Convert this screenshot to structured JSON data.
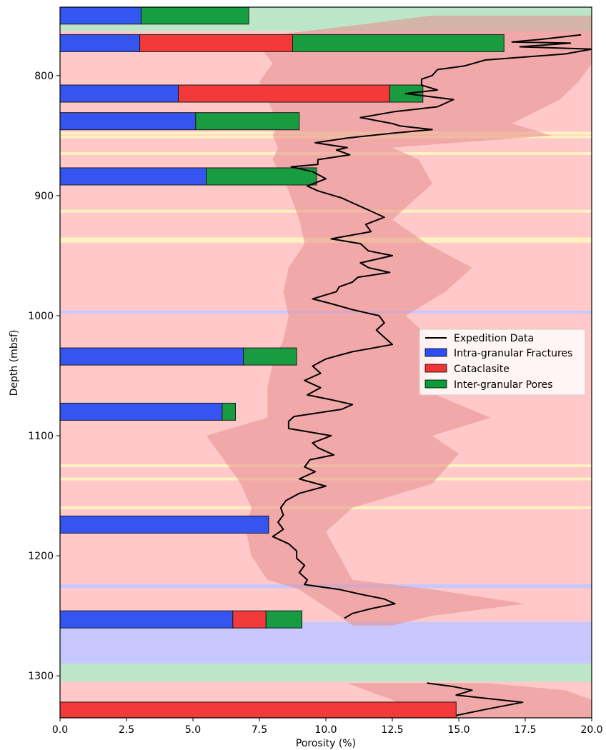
{
  "chart_data": {
    "type": "bar",
    "orientation": "horizontal",
    "stacked": true,
    "xlabel": "Porosity (%)",
    "ylabel": "Depth (mbsf)",
    "xlim": [
      0,
      20
    ],
    "ylim": [
      1335,
      743
    ],
    "x_ticks": [
      "0.0",
      "2.5",
      "5.0",
      "7.5",
      "10.0",
      "12.5",
      "15.0",
      "17.5",
      "20.0"
    ],
    "y_ticks": [
      "800",
      "900",
      "1000",
      "1100",
      "1200",
      "1300"
    ],
    "legend": {
      "position": "center-right",
      "entries": [
        {
          "label": "Expedition Data",
          "color": "#000000",
          "kind": "line"
        },
        {
          "label": "Intra-granular Fractures",
          "color": "#2b4ff2",
          "kind": "patch"
        },
        {
          "label": "Cataclasite",
          "color": "#f23333",
          "kind": "patch"
        },
        {
          "label": "Inter-granular Pores",
          "color": "#0d9a3a",
          "kind": "patch"
        }
      ]
    },
    "colors": {
      "intra": "#2b4ff2",
      "cataclasite": "#f23333",
      "inter": "#0d9a3a",
      "bg_pink": "#ffc9c9",
      "bg_green": "#bde5c8",
      "bg_blue": "#c8c8ff",
      "bg_yellow": "#fff2c0",
      "envelope": "#e68c8c"
    },
    "bars": [
      {
        "depth": 750,
        "intra": 3.05,
        "cataclasite": 0,
        "inter": 4.05
      },
      {
        "depth": 773,
        "intra": 3.0,
        "cataclasite": 5.75,
        "inter": 7.95
      },
      {
        "depth": 815,
        "intra": 4.45,
        "cataclasite": 7.95,
        "inter": 1.25
      },
      {
        "depth": 838,
        "intra": 5.1,
        "cataclasite": 0,
        "inter": 3.9
      },
      {
        "depth": 884,
        "intra": 5.5,
        "cataclasite": 0,
        "inter": 4.15
      },
      {
        "depth": 1034,
        "intra": 6.9,
        "cataclasite": 0,
        "inter": 2.0
      },
      {
        "depth": 1080,
        "intra": 6.1,
        "cataclasite": 0,
        "inter": 0.5
      },
      {
        "depth": 1174,
        "intra": 7.85,
        "cataclasite": 0,
        "inter": 0
      },
      {
        "depth": 1253,
        "intra": 6.5,
        "cataclasite": 1.25,
        "inter": 1.35
      },
      {
        "depth": 1329,
        "intra": 0,
        "cataclasite": 14.9,
        "inter": 0
      }
    ],
    "background_bands": [
      {
        "from": 743,
        "to": 763,
        "color": "green"
      },
      {
        "from": 763,
        "to": 1225,
        "color": "pink"
      },
      {
        "from": 1225,
        "to": 1227,
        "color": "blue"
      },
      {
        "from": 1227,
        "to": 1255,
        "color": "pink"
      },
      {
        "from": 1255,
        "to": 1290,
        "color": "blue"
      },
      {
        "from": 1290,
        "to": 1305,
        "color": "green"
      },
      {
        "from": 1305,
        "to": 1335,
        "color": "pink"
      }
    ],
    "band_lines": [
      {
        "depth": 848,
        "color": "yellow"
      },
      {
        "depth": 851,
        "color": "yellow"
      },
      {
        "depth": 865,
        "color": "yellow"
      },
      {
        "depth": 913,
        "color": "yellow"
      },
      {
        "depth": 936,
        "color": "yellow"
      },
      {
        "depth": 938,
        "color": "yellow"
      },
      {
        "depth": 997,
        "color": "blue"
      },
      {
        "depth": 1125,
        "color": "yellow"
      },
      {
        "depth": 1136,
        "color": "yellow"
      },
      {
        "depth": 1160,
        "color": "yellow"
      },
      {
        "depth": 1225,
        "color": "blue"
      }
    ],
    "envelope_series": {
      "name": "",
      "depth": [
        750,
        757,
        765,
        775,
        790,
        805,
        820,
        840,
        850,
        860,
        870,
        890,
        920,
        940,
        960,
        980,
        1000,
        1020,
        1040,
        1060,
        1085,
        1100,
        1115,
        1140,
        1160,
        1180,
        1200,
        1220,
        1228,
        1240,
        1250,
        1258
      ],
      "low": [
        14.0,
        11.5,
        8.5,
        7.5,
        8.0,
        7.5,
        7.8,
        8.2,
        8.0,
        8.2,
        8.0,
        8.5,
        9.0,
        9.2,
        8.6,
        8.4,
        8.6,
        8.4,
        8.0,
        7.8,
        7.8,
        5.5,
        6.0,
        6.8,
        7.2,
        7.0,
        7.2,
        7.8,
        9.0,
        9.8,
        10.5,
        11.0
      ],
      "high": [
        20.0,
        20.0,
        20.0,
        20.0,
        20.0,
        19.5,
        18.8,
        17.0,
        18.5,
        12.5,
        13.5,
        14.0,
        12.5,
        13.8,
        15.5,
        14.5,
        13.0,
        14.0,
        14.2,
        13.5,
        16.2,
        14.0,
        15.0,
        14.0,
        11.0,
        10.0,
        10.5,
        11.0,
        14.0,
        17.5,
        14.0,
        12.5
      ]
    },
    "envelope_bottom": {
      "depth": [
        1306,
        1312,
        1320,
        1328,
        1335
      ],
      "low": [
        10.8,
        11.5,
        12.5,
        13.0,
        13.2
      ],
      "high": [
        16.0,
        19.0,
        20.0,
        20.0,
        20.0
      ]
    },
    "series": [
      {
        "name": "Expedition Data",
        "depth": [
          766,
          770,
          772,
          773,
          776,
          778,
          782,
          787,
          792,
          795,
          800,
          803,
          808,
          812,
          815,
          820,
          826,
          830,
          835,
          840,
          842,
          845,
          848,
          852,
          856,
          860,
          862,
          866,
          870,
          874,
          876,
          880,
          886,
          892,
          896,
          902,
          906,
          912,
          918,
          924,
          930,
          936,
          940,
          946,
          950,
          956,
          960,
          964,
          968,
          972,
          976,
          980,
          986,
          990,
          995,
          1000,
          1006,
          1012,
          1018,
          1024,
          1030,
          1036,
          1042,
          1048,
          1054,
          1060,
          1066,
          1070,
          1074,
          1078,
          1084,
          1088,
          1094,
          1100,
          1106,
          1110,
          1116,
          1120,
          1126,
          1130,
          1136,
          1142,
          1148,
          1154,
          1160,
          1166,
          1172,
          1178,
          1184,
          1190,
          1196,
          1202,
          1208,
          1214,
          1220,
          1224,
          1228,
          1232,
          1236,
          1240,
          1244,
          1248,
          1252,
          1306,
          1309,
          1312,
          1316,
          1322,
          1328,
          1333
        ],
        "values": [
          19.6,
          18.0,
          17.0,
          19.2,
          17.3,
          20.0,
          19.0,
          16.0,
          15.2,
          14.2,
          14.0,
          13.6,
          13.6,
          14.2,
          13.0,
          14.8,
          14.2,
          12.6,
          11.3,
          12.5,
          12.8,
          14.0,
          12.5,
          10.8,
          9.6,
          10.8,
          10.4,
          10.9,
          9.7,
          9.7,
          8.7,
          9.5,
          10.0,
          9.3,
          9.7,
          10.6,
          11.0,
          11.6,
          12.2,
          11.5,
          11.7,
          10.2,
          11.3,
          11.6,
          12.5,
          11.3,
          11.6,
          12.4,
          11.2,
          11.0,
          10.5,
          10.4,
          9.5,
          10.2,
          11.0,
          12.0,
          12.2,
          11.9,
          12.2,
          12.5,
          11.0,
          10.0,
          9.5,
          9.8,
          9.2,
          9.8,
          9.3,
          10.2,
          11.0,
          10.6,
          8.8,
          8.6,
          8.6,
          10.2,
          9.5,
          9.7,
          10.3,
          9.4,
          9.2,
          9.6,
          9.0,
          10.0,
          9.0,
          8.5,
          8.3,
          8.4,
          8.2,
          8.4,
          8.0,
          8.6,
          8.9,
          8.9,
          9.2,
          9.0,
          9.3,
          9.2,
          10.5,
          11.3,
          12.2,
          12.6,
          11.7,
          11.0,
          10.7,
          13.8,
          14.8,
          15.5,
          14.9,
          17.4,
          16.0,
          14.9
        ]
      }
    ]
  }
}
